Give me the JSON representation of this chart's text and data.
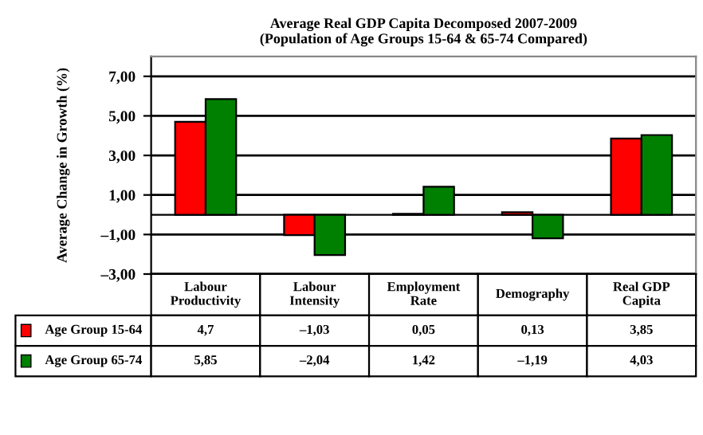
{
  "chart_data": {
    "type": "bar",
    "title": "Average Real GDP Capita Decomposed 2007-2009\n(Population of Age Groups 15-64 & 65-74 Compared)",
    "ylabel": "Average Change in Growth (%)",
    "categories": [
      "Labour\nProductivity",
      "Labour\nIntensity",
      "Employment\nRate",
      "Demography",
      "Real GDP\nCapita"
    ],
    "series": [
      {
        "name": "Age Group 15-64",
        "color": "#ff0000",
        "values": [
          4.7,
          -1.03,
          0.05,
          0.13,
          3.85
        ],
        "value_labels": [
          "4,7",
          "–1,03",
          "0,05",
          "0,13",
          "3,85"
        ]
      },
      {
        "name": "Age Group 65-74",
        "color": "#008000",
        "values": [
          5.85,
          -2.04,
          1.42,
          -1.19,
          4.03
        ],
        "value_labels": [
          "5,85",
          "–2,04",
          "1,42",
          "–1,19",
          "4,03"
        ]
      }
    ],
    "ylim": [
      -3,
      8
    ],
    "yticks": [
      {
        "value": -3,
        "label": "–3,00"
      },
      {
        "value": -1,
        "label": "–1,00"
      },
      {
        "value": 1,
        "label": "1,00"
      },
      {
        "value": 3,
        "label": "3,00"
      },
      {
        "value": 5,
        "label": "5,00"
      },
      {
        "value": 7,
        "label": "7,00"
      }
    ],
    "grid": "y",
    "legend": "bottom"
  }
}
